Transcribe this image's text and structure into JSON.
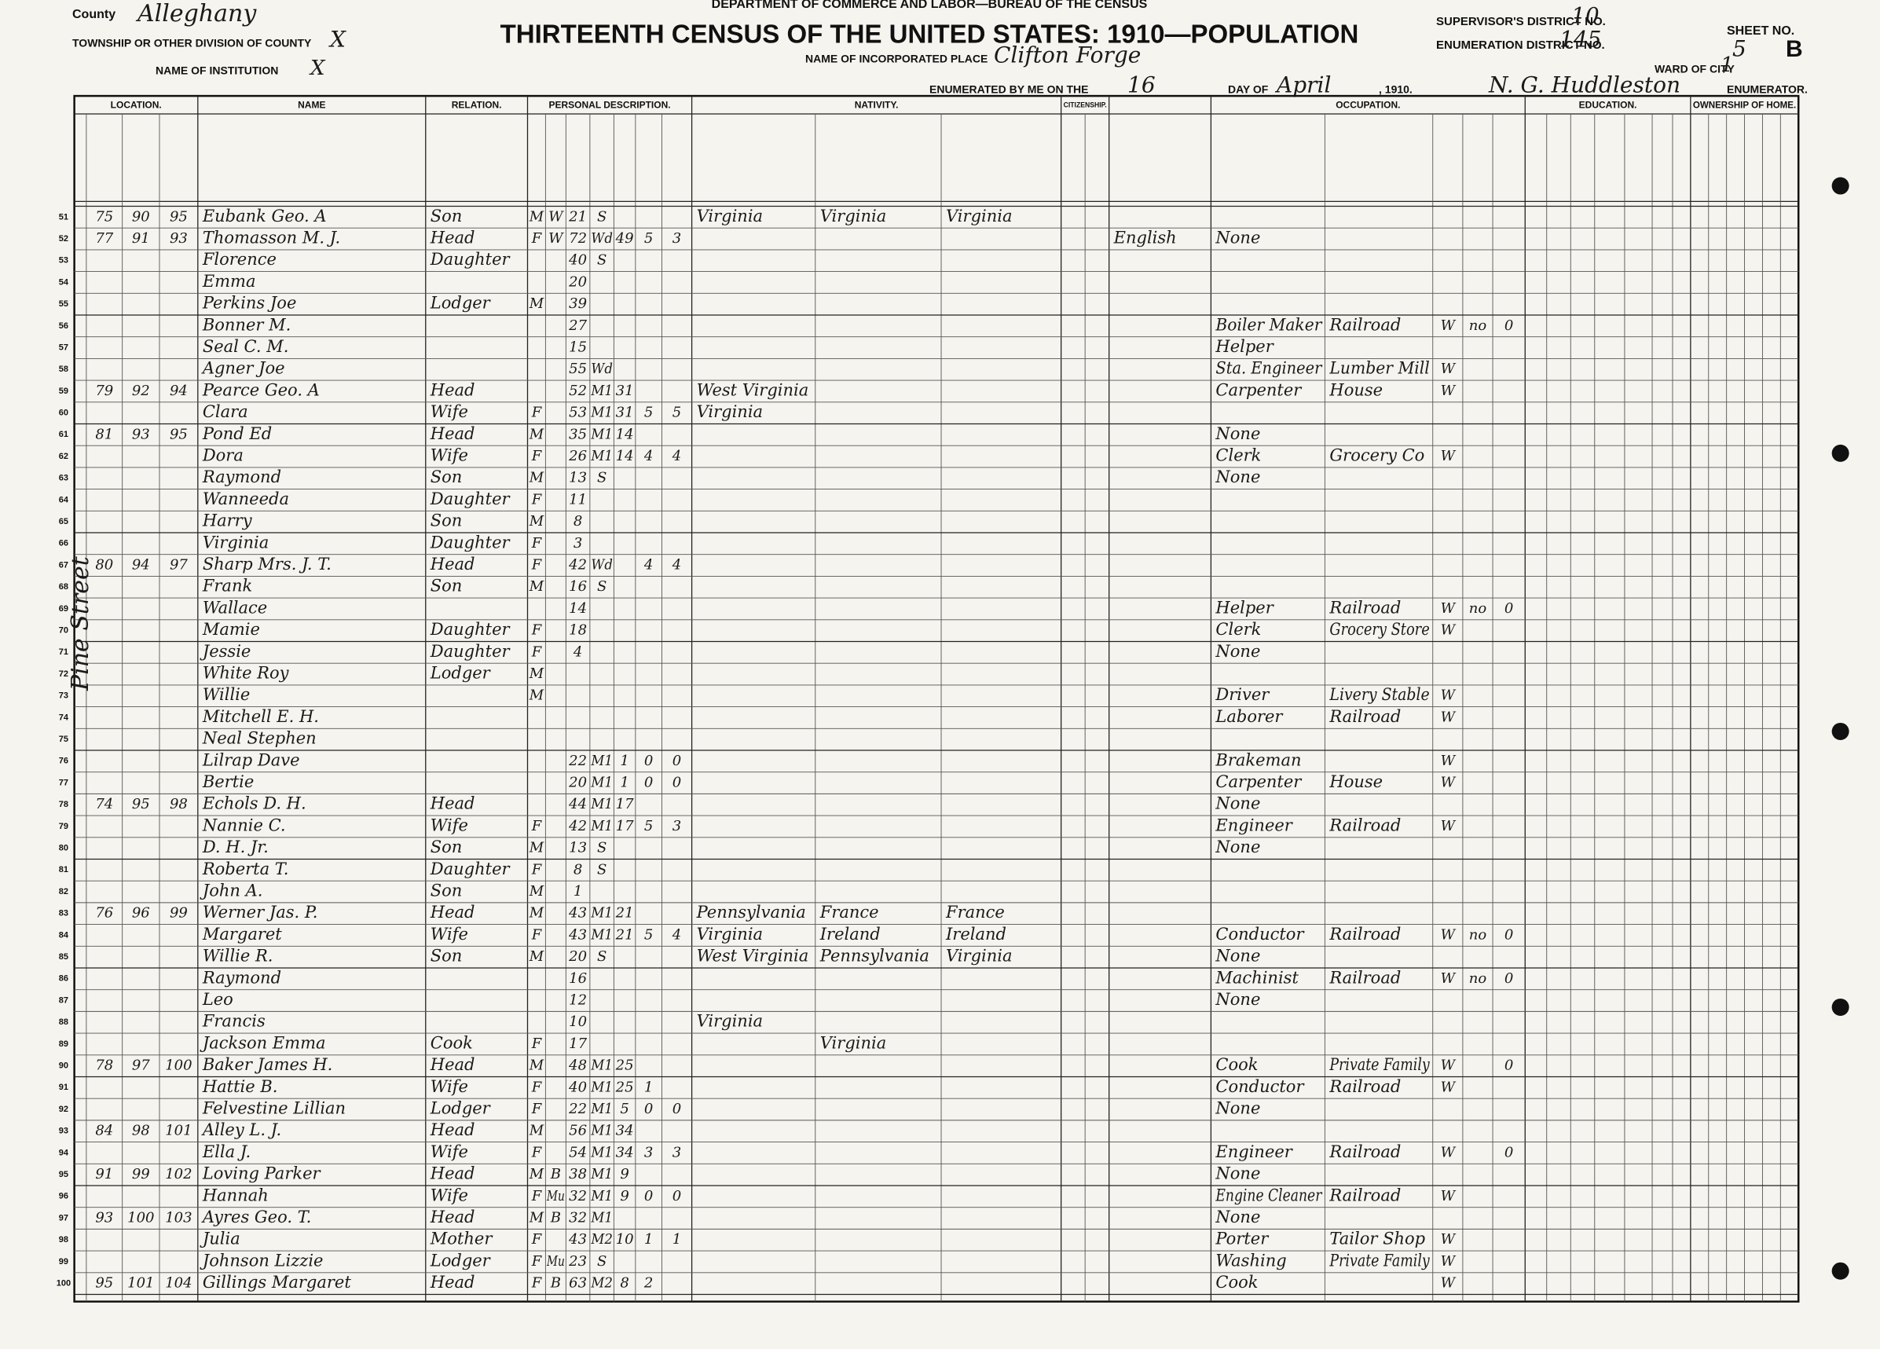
{
  "header": {
    "department": "DEPARTMENT OF COMMERCE AND LABOR—BUREAU OF THE CENSUS",
    "title": "THIRTEENTH CENSUS OF THE UNITED STATES: 1910—POPULATION",
    "county_label": "County",
    "county": "Alleghany",
    "township_label": "TOWNSHIP OR OTHER DIVISION OF COUNTY",
    "township": "X",
    "institution_label": "NAME OF INSTITUTION",
    "institution": "X",
    "place_label": "NAME OF INCORPORATED PLACE",
    "place": "Clifton Forge",
    "enumerated_label": "ENUMERATED BY ME ON THE",
    "day": "16",
    "day_of_label": "DAY OF",
    "month": "April",
    "year": ", 1910.",
    "supervisor_label": "SUPERVISOR'S DISTRICT NO.",
    "supervisor": "10",
    "enumeration_label": "ENUMERATION DISTRICT NO.",
    "enumeration": "145",
    "sheet_label": "SHEET NO.",
    "sheet": "5",
    "sheet_side": "B",
    "ward_label": "WARD OF CITY",
    "ward": "1",
    "enumerator": "N. G. Huddleston",
    "enumerator_label": "ENUMERATOR."
  },
  "groups": [
    "LOCATION.",
    "NAME",
    "RELATION.",
    "PERSONAL DESCRIPTION.",
    "NATIVITY.",
    "CITIZENSHIP.",
    "OCCUPATION.",
    "EDUCATION.",
    "OWNERSHIP OF HOME."
  ],
  "side_note": "Pine Street",
  "rows": [
    {
      "line": 51,
      "house": 75,
      "dwelling": 90,
      "family": 95,
      "name": "Eubank Geo. A",
      "relation": "Son",
      "sex": "M",
      "color": "W",
      "age": 21,
      "marital": "S",
      "birthplace": "Virginia",
      "father_birthplace": "Virginia",
      "mother_birthplace": "Virginia"
    },
    {
      "line": 52,
      "house": 77,
      "dwelling": 91,
      "family": 93,
      "name": "Thomasson M. J.",
      "relation": "Head",
      "sex": "F",
      "color": "W",
      "age": 72,
      "marital": "Wd",
      "years_married": 49,
      "children_born": 5,
      "children_living": 3,
      "language": "English",
      "occupation": "None"
    },
    {
      "line": 53,
      "name": "Florence",
      "relation": "Daughter",
      "age": 40,
      "marital": "S"
    },
    {
      "line": 54,
      "name": "Emma",
      "age": 20
    },
    {
      "line": 55,
      "name": "Perkins Joe",
      "relation": "Lodger",
      "sex": "M",
      "age": 39
    },
    {
      "line": 56,
      "name": "Bonner M.",
      "age": 27,
      "occupation": "Boiler Maker",
      "industry": "Railroad",
      "employer": "W",
      "unemployed": "no",
      "weeks_out": 0
    },
    {
      "line": 57,
      "name": "Seal C. M.",
      "age": 15,
      "occupation": "Helper"
    },
    {
      "line": 58,
      "name": "Agner Joe",
      "age": 55,
      "marital": "Wd",
      "occupation": "Sta. Engineer",
      "industry": "Lumber Mill",
      "employer": "W"
    },
    {
      "line": 59,
      "house": 79,
      "dwelling": 92,
      "family": 94,
      "name": "Pearce Geo. A",
      "relation": "Head",
      "age": 52,
      "marital": "M1",
      "years_married": 31,
      "birthplace": "West Virginia",
      "occupation": "Carpenter",
      "industry": "House",
      "employer": "W"
    },
    {
      "line": 60,
      "name": "Clara",
      "relation": "Wife",
      "sex": "F",
      "age": 53,
      "marital": "M1",
      "years_married": 31,
      "children_born": 5,
      "children_living": 5,
      "birthplace": "Virginia"
    },
    {
      "line": 61,
      "house": 81,
      "dwelling": 93,
      "family": 95,
      "name": "Pond Ed",
      "relation": "Head",
      "sex": "M",
      "age": 35,
      "marital": "M1",
      "years_married": 14,
      "occupation": "None"
    },
    {
      "line": 62,
      "name": "Dora",
      "relation": "Wife",
      "sex": "F",
      "age": 26,
      "marital": "M1",
      "years_married": 14,
      "children_born": 4,
      "children_living": 4,
      "occupation": "Clerk",
      "industry": "Grocery Co",
      "employer": "W"
    },
    {
      "line": 63,
      "name": "Raymond",
      "relation": "Son",
      "sex": "M",
      "age": 13,
      "marital": "S",
      "occupation": "None"
    },
    {
      "line": 64,
      "name": "Wanneeda",
      "relation": "Daughter",
      "sex": "F",
      "age": 11
    },
    {
      "line": 65,
      "name": "Harry",
      "relation": "Son",
      "sex": "M",
      "age": 8
    },
    {
      "line": 66,
      "name": "Virginia",
      "relation": "Daughter",
      "sex": "F",
      "age": 3
    },
    {
      "line": 67,
      "house": 80,
      "dwelling": 94,
      "family": 97,
      "name": "Sharp Mrs. J. T.",
      "relation": "Head",
      "sex": "F",
      "age": 42,
      "marital": "Wd",
      "children_born": 4,
      "children_living": 4
    },
    {
      "line": 68,
      "name": "Frank",
      "relation": "Son",
      "sex": "M",
      "age": 16,
      "marital": "S"
    },
    {
      "line": 69,
      "name": "Wallace",
      "age": 14,
      "occupation": "Helper",
      "industry": "Railroad",
      "employer": "W",
      "unemployed": "no",
      "weeks_out": 0
    },
    {
      "line": 70,
      "name": "Mamie",
      "relation": "Daughter",
      "sex": "F",
      "age": 18,
      "occupation": "Clerk",
      "industry": "Grocery Store",
      "employer": "W"
    },
    {
      "line": 71,
      "name": "Jessie",
      "relation": "Daughter",
      "sex": "F",
      "age": 4,
      "occupation": "None"
    },
    {
      "line": 72,
      "name": "White Roy",
      "relation": "Lodger",
      "sex": "M"
    },
    {
      "line": 73,
      "name": "Willie",
      "sex": "M",
      "occupation": "Driver",
      "industry": "Livery Stable",
      "employer": "W"
    },
    {
      "line": 74,
      "name": "Mitchell E. H.",
      "occupation": "Laborer",
      "industry": "Railroad",
      "employer": "W"
    },
    {
      "line": 75,
      "name": "Neal Stephen"
    },
    {
      "line": 76,
      "name": "Lilrap Dave",
      "age": 22,
      "marital": "M1",
      "years_married": 1,
      "children_born": 0,
      "children_living": 0,
      "occupation": "Brakeman",
      "employer": "W"
    },
    {
      "line": 77,
      "name": "Bertie",
      "age": 20,
      "marital": "M1",
      "years_married": 1,
      "children_born": 0,
      "children_living": 0,
      "occupation": "Carpenter",
      "industry": "House",
      "employer": "W"
    },
    {
      "line": 78,
      "house": 74,
      "dwelling": 95,
      "family": 98,
      "name": "Echols D. H.",
      "relation": "Head",
      "age": 44,
      "marital": "M1",
      "years_married": 17,
      "occupation": "None"
    },
    {
      "line": 79,
      "name": "Nannie C.",
      "relation": "Wife",
      "sex": "F",
      "age": 42,
      "marital": "M1",
      "years_married": 17,
      "children_born": 5,
      "children_living": 3,
      "occupation": "Engineer",
      "industry": "Railroad",
      "employer": "W"
    },
    {
      "line": 80,
      "name": "D. H. Jr.",
      "relation": "Son",
      "sex": "M",
      "age": 13,
      "marital": "S",
      "occupation": "None"
    },
    {
      "line": 81,
      "name": "Roberta T.",
      "relation": "Daughter",
      "sex": "F",
      "age": 8,
      "marital": "S"
    },
    {
      "line": 82,
      "name": "John A.",
      "relation": "Son",
      "sex": "M",
      "age": 1
    },
    {
      "line": 83,
      "house": 76,
      "dwelling": 96,
      "family": 99,
      "name": "Werner Jas. P.",
      "relation": "Head",
      "sex": "M",
      "age": 43,
      "marital": "M1",
      "years_married": 21,
      "birthplace": "Pennsylvania",
      "father_birthplace": "France",
      "mother_birthplace": "France"
    },
    {
      "line": 84,
      "name": "Margaret",
      "relation": "Wife",
      "sex": "F",
      "age": 43,
      "marital": "M1",
      "years_married": 21,
      "children_born": 5,
      "children_living": 4,
      "birthplace": "Virginia",
      "father_birthplace": "Ireland",
      "mother_birthplace": "Ireland",
      "occupation": "Conductor",
      "industry": "Railroad",
      "employer": "W",
      "unemployed": "no",
      "weeks_out": 0
    },
    {
      "line": 85,
      "name": "Willie R.",
      "relation": "Son",
      "sex": "M",
      "age": 20,
      "marital": "S",
      "birthplace": "West Virginia",
      "father_birthplace": "Pennsylvania",
      "mother_birthplace": "Virginia",
      "occupation": "None"
    },
    {
      "line": 86,
      "name": "Raymond",
      "age": 16,
      "occupation": "Machinist",
      "industry": "Railroad",
      "employer": "W",
      "unemployed": "no",
      "weeks_out": 0
    },
    {
      "line": 87,
      "name": "Leo",
      "age": 12,
      "occupation": "None"
    },
    {
      "line": 88,
      "name": "Francis",
      "age": 10,
      "birthplace": "Virginia"
    },
    {
      "line": 89,
      "name": "Jackson Emma",
      "relation": "Cook",
      "sex": "F",
      "age": 17,
      "father_birthplace": "Virginia"
    },
    {
      "line": 90,
      "house": 78,
      "dwelling": 97,
      "family": 100,
      "name": "Baker James H.",
      "relation": "Head",
      "sex": "M",
      "age": 48,
      "marital": "M1",
      "years_married": 25,
      "occupation": "Cook",
      "industry": "Private Family",
      "employer": "W",
      "weeks_out": 0
    },
    {
      "line": 91,
      "name": "Hattie B.",
      "relation": "Wife",
      "sex": "F",
      "age": 40,
      "marital": "M1",
      "years_married": 25,
      "children_born": 1,
      "occupation": "Conductor",
      "industry": "Railroad",
      "employer": "W"
    },
    {
      "line": 92,
      "name": "Felvestine Lillian",
      "relation": "Lodger",
      "sex": "F",
      "age": 22,
      "marital": "M1",
      "years_married": 5,
      "children_born": 0,
      "children_living": 0,
      "occupation": "None"
    },
    {
      "line": 93,
      "house": 84,
      "dwelling": 98,
      "family": 101,
      "name": "Alley L. J.",
      "relation": "Head",
      "sex": "M",
      "age": 56,
      "marital": "M1",
      "years_married": 34
    },
    {
      "line": 94,
      "name": "Ella J.",
      "relation": "Wife",
      "sex": "F",
      "age": 54,
      "marital": "M1",
      "years_married": 34,
      "children_born": 3,
      "children_living": 3,
      "occupation": "Engineer",
      "industry": "Railroad",
      "employer": "W",
      "weeks_out": 0
    },
    {
      "line": 95,
      "house": 91,
      "dwelling": 99,
      "family": 102,
      "name": "Loving Parker",
      "relation": "Head",
      "sex": "M",
      "color": "B",
      "age": 38,
      "marital": "M1",
      "years_married": 9,
      "occupation": "None"
    },
    {
      "line": 96,
      "name": "Hannah",
      "relation": "Wife",
      "sex": "F",
      "color": "Mu",
      "age": 32,
      "marital": "M1",
      "years_married": 9,
      "children_born": 0,
      "children_living": 0,
      "occupation": "Engine Cleaner",
      "industry": "Railroad",
      "employer": "W"
    },
    {
      "line": 97,
      "house": 93,
      "dwelling": 100,
      "family": 103,
      "name": "Ayres Geo. T.",
      "relation": "Head",
      "sex": "M",
      "color": "B",
      "age": 32,
      "marital": "M1",
      "occupation": "None"
    },
    {
      "line": 98,
      "name": "Julia",
      "relation": "Mother",
      "sex": "F",
      "age": 43,
      "marital": "M2",
      "years_married": 10,
      "children_born": 1,
      "children_living": 1,
      "occupation": "Porter",
      "industry": "Tailor Shop",
      "employer": "W"
    },
    {
      "line": 99,
      "name": "Johnson Lizzie",
      "relation": "Lodger",
      "sex": "F",
      "color": "Mu",
      "age": 23,
      "marital": "S",
      "occupation": "Washing",
      "industry": "Private Family",
      "employer": "W"
    },
    {
      "line": 100,
      "house": 95,
      "dwelling": 101,
      "family": 104,
      "name": "Gillings Margaret",
      "relation": "Head",
      "sex": "F",
      "color": "B",
      "age": 63,
      "marital": "M2",
      "years_married": 8,
      "children_born": 2,
      "occupation": "Cook",
      "employer": "W"
    }
  ]
}
